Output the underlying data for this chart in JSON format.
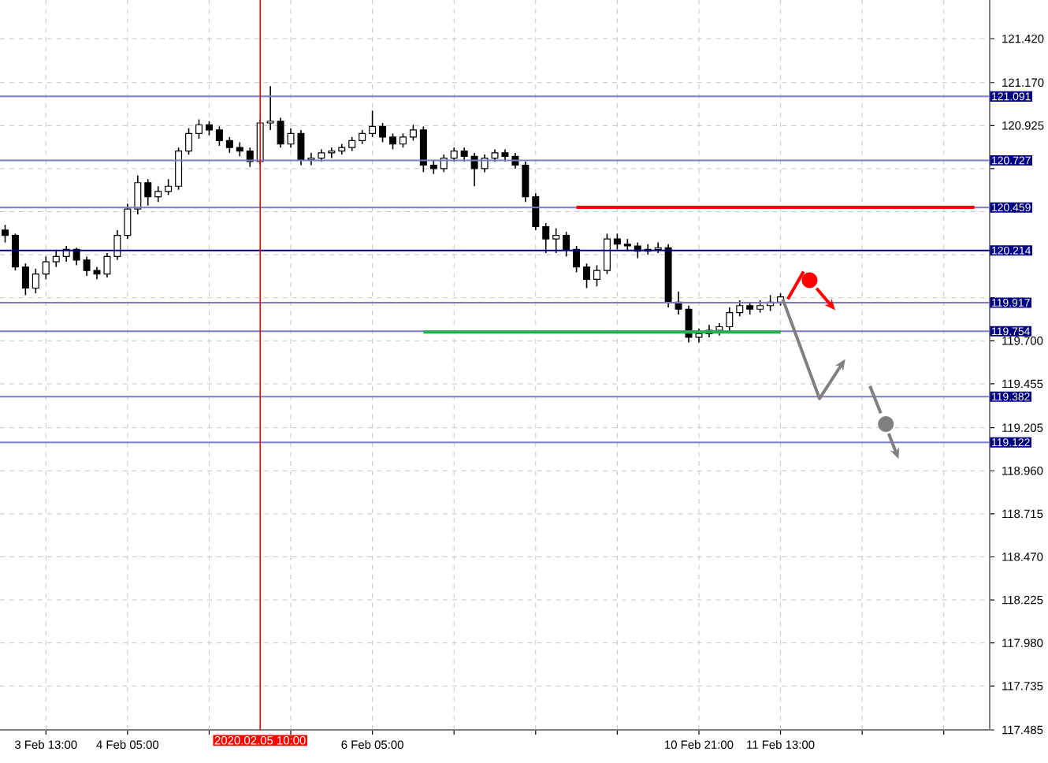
{
  "chart_data": {
    "type": "candlestick",
    "categories": [
      null,
      null,
      null,
      null,
      "3 Feb 13:00",
      null,
      null,
      null,
      null,
      null,
      null,
      null,
      "4 Feb 05:00",
      null,
      null,
      null,
      null,
      null,
      null,
      null,
      null,
      null,
      null,
      null,
      null,
      "2020.02.05 10:00",
      null,
      null,
      null,
      null,
      null,
      null,
      null,
      null,
      null,
      null,
      "6 Feb 05:00",
      null,
      null,
      null,
      null,
      null,
      null,
      null,
      null,
      null,
      null,
      null,
      null,
      null,
      null,
      null,
      null,
      null,
      null,
      null,
      null,
      null,
      null,
      null,
      null,
      null,
      null,
      null,
      null,
      null,
      null,
      null,
      "10 Feb 21:00",
      null,
      null,
      null,
      null,
      null,
      null,
      null,
      "11 Feb 13:00",
      null,
      null,
      null,
      null,
      null,
      null,
      null,
      null,
      null,
      null,
      null,
      null,
      null,
      null,
      null,
      null,
      null,
      null,
      null,
      null
    ],
    "ohlc": [
      [
        120.33,
        120.36,
        120.26,
        120.3
      ],
      [
        120.3,
        120.31,
        120.1,
        120.12
      ],
      [
        120.12,
        120.14,
        119.96,
        120.0
      ],
      [
        120.0,
        120.11,
        119.97,
        120.08
      ],
      [
        120.08,
        120.18,
        120.05,
        120.15
      ],
      [
        120.15,
        120.21,
        120.12,
        120.18
      ],
      [
        120.18,
        120.24,
        120.15,
        120.22
      ],
      [
        120.22,
        120.23,
        120.13,
        120.16
      ],
      [
        120.16,
        120.18,
        120.07,
        120.1
      ],
      [
        120.1,
        120.12,
        120.05,
        120.08
      ],
      [
        120.08,
        120.2,
        120.06,
        120.18
      ],
      [
        120.18,
        120.33,
        120.16,
        120.3
      ],
      [
        120.3,
        120.48,
        120.28,
        120.45
      ],
      [
        120.45,
        120.64,
        120.42,
        120.6
      ],
      [
        120.6,
        120.62,
        120.47,
        120.52
      ],
      [
        120.52,
        120.58,
        120.49,
        120.55
      ],
      [
        120.55,
        120.62,
        120.53,
        120.58
      ],
      [
        120.58,
        120.8,
        120.56,
        120.78
      ],
      [
        120.78,
        120.91,
        120.76,
        120.88
      ],
      [
        120.88,
        120.96,
        120.85,
        120.93
      ],
      [
        120.93,
        120.95,
        120.87,
        120.9
      ],
      [
        120.9,
        120.92,
        120.81,
        120.84
      ],
      [
        120.84,
        120.86,
        120.77,
        120.8
      ],
      [
        120.8,
        120.83,
        120.75,
        120.78
      ],
      [
        120.78,
        120.8,
        120.69,
        120.72
      ],
      [
        120.72,
        120.96,
        120.7,
        120.94
      ],
      [
        120.94,
        121.15,
        120.9,
        120.95
      ],
      [
        120.95,
        120.97,
        120.8,
        120.82
      ],
      [
        120.82,
        120.91,
        120.8,
        120.88
      ],
      [
        120.88,
        120.9,
        120.7,
        120.73
      ],
      [
        120.73,
        120.77,
        120.7,
        120.74
      ],
      [
        120.74,
        120.79,
        120.72,
        120.77
      ],
      [
        120.77,
        120.8,
        120.74,
        120.78
      ],
      [
        120.78,
        120.82,
        120.76,
        120.8
      ],
      [
        120.8,
        120.86,
        120.78,
        120.84
      ],
      [
        120.84,
        120.9,
        120.82,
        120.88
      ],
      [
        120.88,
        121.01,
        120.86,
        120.92
      ],
      [
        120.92,
        120.94,
        120.83,
        120.86
      ],
      [
        120.86,
        120.88,
        120.79,
        120.82
      ],
      [
        120.82,
        120.88,
        120.8,
        120.86
      ],
      [
        120.86,
        120.93,
        120.84,
        120.9
      ],
      [
        120.9,
        120.92,
        120.66,
        120.7
      ],
      [
        120.7,
        120.73,
        120.65,
        120.68
      ],
      [
        120.68,
        120.76,
        120.66,
        120.74
      ],
      [
        120.74,
        120.8,
        120.72,
        120.78
      ],
      [
        120.78,
        120.8,
        120.72,
        120.75
      ],
      [
        120.75,
        120.77,
        120.58,
        120.68
      ],
      [
        120.68,
        120.76,
        120.66,
        120.74
      ],
      [
        120.74,
        120.79,
        120.72,
        120.77
      ],
      [
        120.77,
        120.79,
        120.72,
        120.75
      ],
      [
        120.75,
        120.77,
        120.68,
        120.7
      ],
      [
        120.7,
        120.72,
        120.49,
        120.52
      ],
      [
        120.52,
        120.54,
        120.33,
        120.35
      ],
      [
        120.35,
        120.37,
        120.2,
        120.28
      ],
      [
        120.28,
        120.34,
        120.2,
        120.3
      ],
      [
        120.3,
        120.32,
        120.18,
        120.22
      ],
      [
        120.22,
        120.24,
        120.09,
        120.12
      ],
      [
        120.12,
        120.14,
        120.0,
        120.05
      ],
      [
        120.05,
        120.13,
        120.01,
        120.1
      ],
      [
        120.1,
        120.31,
        120.08,
        120.28
      ],
      [
        120.28,
        120.31,
        120.22,
        120.25
      ],
      [
        120.25,
        120.28,
        120.21,
        120.24
      ],
      [
        120.24,
        120.26,
        120.17,
        120.21
      ],
      [
        120.21,
        120.25,
        120.19,
        120.22
      ],
      [
        120.22,
        120.26,
        120.2,
        120.23
      ],
      [
        120.23,
        120.25,
        119.89,
        119.92
      ],
      [
        119.92,
        119.98,
        119.85,
        119.88
      ],
      [
        119.88,
        119.9,
        119.69,
        119.72
      ],
      [
        119.72,
        119.77,
        119.69,
        119.74
      ],
      [
        119.74,
        119.79,
        119.72,
        119.76
      ],
      [
        119.76,
        119.8,
        119.73,
        119.78
      ],
      [
        119.78,
        119.89,
        119.76,
        119.86
      ],
      [
        119.86,
        119.93,
        119.84,
        119.9
      ],
      [
        119.9,
        119.92,
        119.85,
        119.88
      ],
      [
        119.88,
        119.93,
        119.86,
        119.9
      ],
      [
        119.9,
        119.96,
        119.87,
        119.92
      ],
      [
        119.92,
        119.97,
        119.9,
        119.95
      ],
      null,
      null,
      null,
      null,
      null,
      null,
      null,
      null,
      null,
      null,
      null,
      null,
      null,
      null,
      null,
      null,
      null,
      null,
      null,
      null
    ],
    "series": [
      {
        "type": "line",
        "color": "#ff0000",
        "values": [
          null,
          null,
          null,
          null,
          null,
          null,
          null,
          null,
          null,
          null,
          null,
          null,
          null,
          null,
          null,
          null,
          null,
          null,
          null,
          null,
          null,
          null,
          null,
          null,
          null,
          null,
          null,
          null,
          null,
          null,
          null,
          null,
          null,
          null,
          null,
          null,
          null,
          null,
          null,
          null,
          null,
          null,
          null,
          null,
          null,
          null,
          null,
          null,
          null,
          null,
          null,
          null,
          null,
          null,
          null,
          null,
          120.46,
          120.46,
          120.46,
          120.46,
          120.46,
          120.46,
          120.46,
          120.46,
          120.46,
          120.46,
          120.46,
          120.46,
          120.46,
          120.46,
          120.46,
          120.46,
          120.46,
          120.46,
          120.46,
          120.46,
          120.46,
          120.46,
          120.46,
          120.46,
          120.46,
          120.46,
          120.46,
          120.46,
          120.46,
          120.46,
          120.46,
          120.46,
          120.46,
          120.46,
          120.46,
          120.46,
          120.46,
          120.46,
          120.46,
          120.46,
          null
        ]
      },
      {
        "type": "line",
        "color": "#22b14c",
        "values": [
          null,
          null,
          null,
          null,
          null,
          null,
          null,
          null,
          null,
          null,
          null,
          null,
          null,
          null,
          null,
          null,
          null,
          null,
          null,
          null,
          null,
          null,
          null,
          null,
          null,
          null,
          null,
          null,
          null,
          null,
          null,
          null,
          null,
          null,
          null,
          null,
          null,
          null,
          null,
          null,
          null,
          119.75,
          119.75,
          119.75,
          119.75,
          119.75,
          119.75,
          119.75,
          119.75,
          119.75,
          119.75,
          119.75,
          119.75,
          119.75,
          119.75,
          119.75,
          119.75,
          119.75,
          119.75,
          119.75,
          119.75,
          119.75,
          119.75,
          119.75,
          119.75,
          119.75,
          119.75,
          119.75,
          119.75,
          119.75,
          119.75,
          119.75,
          119.75,
          119.75,
          119.75,
          119.75,
          119.75,
          null,
          null,
          null,
          null,
          null,
          null,
          null,
          null,
          null,
          null,
          null,
          null,
          null,
          null,
          null,
          null,
          null,
          null,
          null,
          null
        ]
      }
    ],
    "ylim": [
      117.485,
      121.64
    ],
    "yticks": [
      {
        "value": 117.485,
        "label": "117.485"
      },
      {
        "value": 117.735,
        "label": "117.735"
      },
      {
        "value": 117.98,
        "label": "117.980"
      },
      {
        "value": 118.225,
        "label": "118.225"
      },
      {
        "value": 118.47,
        "label": "118.470"
      },
      {
        "value": 118.715,
        "label": "118.715"
      },
      {
        "value": 118.96,
        "label": "118.960"
      },
      {
        "value": 119.205,
        "label": "119.205"
      },
      {
        "value": 119.455,
        "label": "119.455"
      },
      {
        "value": 119.7,
        "label": "119.700"
      },
      {
        "value": 119.945,
        "label": null
      },
      {
        "value": 120.19,
        "label": null
      },
      {
        "value": 120.435,
        "label": null
      },
      {
        "value": 120.68,
        "label": null
      },
      {
        "value": 120.925,
        "label": "120.925"
      },
      {
        "value": 121.17,
        "label": "121.170"
      },
      {
        "value": 121.42,
        "label": "121.420"
      }
    ],
    "grid": true,
    "ref_lines": [
      {
        "axis": "y",
        "value": 121.091,
        "label": "121.091",
        "color": "#7b7bc8"
      },
      {
        "axis": "y",
        "value": 120.727,
        "label": "120.727",
        "color": "#7b7bc8"
      },
      {
        "axis": "y",
        "value": 120.459,
        "label": "120.459",
        "color": "#7b7bc8"
      },
      {
        "axis": "y",
        "value": 120.214,
        "label": "120.214",
        "color": "#000080"
      },
      {
        "axis": "y",
        "value": 119.917,
        "label": "119.917",
        "color": "#7b7bc8"
      },
      {
        "axis": "y",
        "value": 119.754,
        "label": "119.754",
        "color": "#7b7bc8"
      },
      {
        "axis": "y",
        "value": 119.382,
        "label": "119.382",
        "color": "#7b7bc8"
      },
      {
        "axis": "y",
        "value": 119.122,
        "label": "119.122",
        "color": "#7b7bc8"
      },
      {
        "axis": "x",
        "value": "2020.02.05 10:00",
        "color": "#ff0000"
      }
    ]
  }
}
